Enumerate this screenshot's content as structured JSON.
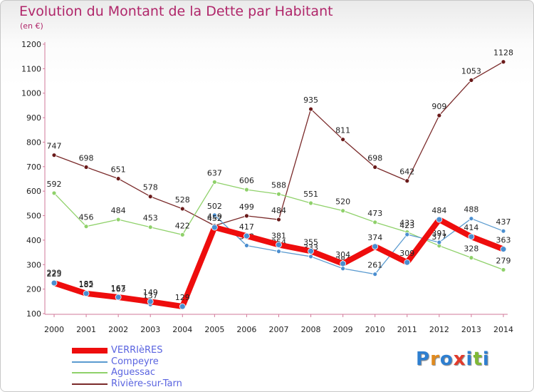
{
  "title": "Evolution du Montant de la Dette par Habitant",
  "subtitle": "(en €)",
  "logo": {
    "text": "Proxiti",
    "letter_colors": [
      "#2e7fd0",
      "#e08a1e",
      "#2e7fd0",
      "#e23a2b",
      "#2e7fd0",
      "#7fb935",
      "#2e7fd0"
    ]
  },
  "chart_data": {
    "type": "line",
    "x": [
      "2000",
      "2001",
      "2002",
      "2003",
      "2004",
      "2005",
      "2006",
      "2007",
      "2008",
      "2009",
      "2010",
      "2011",
      "2012",
      "2013",
      "2014"
    ],
    "ylim": [
      100,
      1200
    ],
    "yticks": [
      100,
      200,
      300,
      400,
      500,
      600,
      700,
      800,
      900,
      1000,
      1100,
      1200
    ],
    "grid": false,
    "legend_position": "bottom-left",
    "series": [
      {
        "name": "Rivière-sur-Tarn",
        "color": "#7a2a2a",
        "values": [
          747,
          698,
          651,
          578,
          528,
          459,
          499,
          484,
          935,
          811,
          698,
          642,
          909,
          1053,
          1128
        ]
      },
      {
        "name": "Aguessac",
        "color": "#8fd16a",
        "values": [
          592,
          456,
          484,
          453,
          422,
          637,
          606,
          588,
          551,
          520,
          473,
          433,
          377,
          328,
          279
        ]
      },
      {
        "name": "Compeyre",
        "color": "#5b9bd0",
        "values": [
          229,
          185,
          163,
          137,
          null,
          502,
          378,
          354,
          333,
          284,
          261,
          423,
          391,
          488,
          437
        ]
      },
      {
        "name": "VERRIèRES",
        "color": "#ee0d0d",
        "values": [
          225,
          182,
          167,
          149,
          129,
          452,
          417,
          381,
          355,
          304,
          374,
          309,
          484,
          414,
          363
        ]
      }
    ]
  }
}
